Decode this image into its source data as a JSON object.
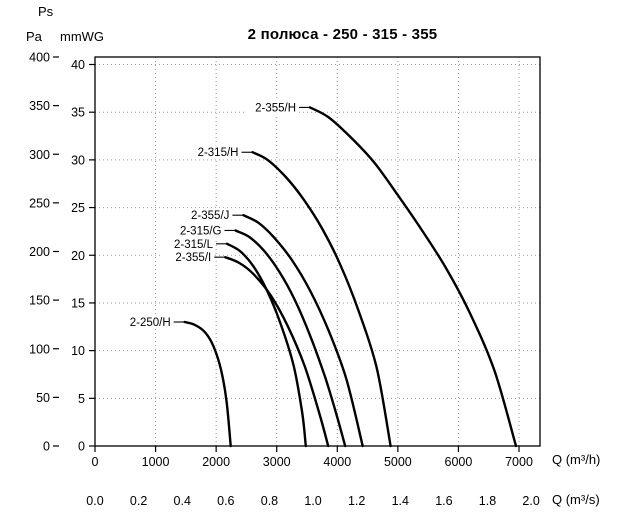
{
  "chart_data": {
    "type": "line",
    "title": "2 полюса - 250 - 315 - 355",
    "grid": "dotted",
    "legend_position": "labels-on-curves",
    "y_axis": {
      "top_label": "Ps",
      "outer": {
        "unit": "Pa",
        "range": [
          0,
          400
        ],
        "ticks": [
          0,
          50,
          100,
          150,
          200,
          250,
          300,
          350,
          400
        ]
      },
      "inner": {
        "unit": "mmWG",
        "range": [
          0,
          40
        ],
        "ticks": [
          0,
          5,
          10,
          15,
          20,
          25,
          30,
          35,
          40
        ]
      }
    },
    "x_axis": {
      "inner": {
        "unit": "Q (m³/h)",
        "range": [
          0,
          7350
        ],
        "ticks": [
          0,
          1000,
          2000,
          3000,
          4000,
          5000,
          6000,
          7000
        ]
      },
      "outer": {
        "unit": "Q (m³/s)",
        "range": [
          0,
          2.04
        ],
        "ticks": [
          0.0,
          0.2,
          0.4,
          0.6,
          0.8,
          1.0,
          1.2,
          1.4,
          1.6,
          1.8,
          2.0
        ]
      }
    },
    "series": [
      {
        "name": "2-355/H",
        "x_unit": "m3/h",
        "y_unit": "mmWG",
        "points": [
          [
            3550,
            35.5
          ],
          [
            3850,
            34.5
          ],
          [
            4200,
            32.5
          ],
          [
            4600,
            29.8
          ],
          [
            5000,
            26.3
          ],
          [
            5400,
            22.6
          ],
          [
            5800,
            18.6
          ],
          [
            6200,
            13.8
          ],
          [
            6600,
            7.8
          ],
          [
            6950,
            0
          ]
        ]
      },
      {
        "name": "2-315/H",
        "x_unit": "m3/h",
        "y_unit": "mmWG",
        "points": [
          [
            2600,
            30.8
          ],
          [
            2850,
            30
          ],
          [
            3150,
            28.2
          ],
          [
            3450,
            25.8
          ],
          [
            3750,
            22.8
          ],
          [
            4050,
            19
          ],
          [
            4350,
            14.2
          ],
          [
            4650,
            8.2
          ],
          [
            4880,
            0
          ]
        ]
      },
      {
        "name": "2-355/J",
        "x_unit": "m3/h",
        "y_unit": "mmWG",
        "points": [
          [
            2450,
            24.2
          ],
          [
            2700,
            23.4
          ],
          [
            2950,
            21.9
          ],
          [
            3250,
            19.5
          ],
          [
            3550,
            16.3
          ],
          [
            3850,
            12.2
          ],
          [
            4150,
            7
          ],
          [
            4420,
            0
          ]
        ]
      },
      {
        "name": "2-315/G",
        "x_unit": "m3/h",
        "y_unit": "mmWG",
        "points": [
          [
            2320,
            22.6
          ],
          [
            2550,
            21.9
          ],
          [
            2800,
            20.4
          ],
          [
            3050,
            18.2
          ],
          [
            3300,
            15.3
          ],
          [
            3550,
            11.6
          ],
          [
            3800,
            7.2
          ],
          [
            4000,
            3
          ],
          [
            4130,
            0
          ]
        ]
      },
      {
        "name": "2-315/L",
        "x_unit": "m3/h",
        "y_unit": "mmWG",
        "points": [
          [
            2180,
            21.2
          ],
          [
            2400,
            20.4
          ],
          [
            2620,
            18.8
          ],
          [
            2840,
            16.3
          ],
          [
            3060,
            12.9
          ],
          [
            3280,
            8.4
          ],
          [
            3420,
            3.5
          ],
          [
            3480,
            0
          ]
        ]
      },
      {
        "name": "2-355/I",
        "x_unit": "m3/h",
        "y_unit": "mmWG",
        "points": [
          [
            2150,
            19.8
          ],
          [
            2380,
            19.2
          ],
          [
            2620,
            18
          ],
          [
            2900,
            15.8
          ],
          [
            3180,
            12.6
          ],
          [
            3460,
            8.4
          ],
          [
            3700,
            3.5
          ],
          [
            3850,
            0
          ]
        ]
      },
      {
        "name": "2-250/H",
        "x_unit": "m3/h",
        "y_unit": "mmWG",
        "points": [
          [
            1480,
            13
          ],
          [
            1650,
            12.7
          ],
          [
            1820,
            11.9
          ],
          [
            1960,
            10.4
          ],
          [
            2080,
            8
          ],
          [
            2170,
            4.8
          ],
          [
            2240,
            0
          ]
        ]
      }
    ]
  }
}
